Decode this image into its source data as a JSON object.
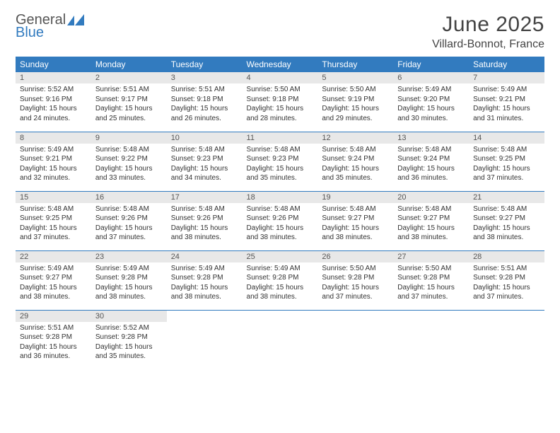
{
  "brand": {
    "word1": "General",
    "word2": "Blue"
  },
  "title": {
    "month": "June 2025",
    "location": "Villard-Bonnot, France"
  },
  "colors": {
    "accent": "#327bbf",
    "header_bg": "#327bbf",
    "daynum_bg": "#e8e8e8",
    "text": "#333333"
  },
  "columns": [
    "Sunday",
    "Monday",
    "Tuesday",
    "Wednesday",
    "Thursday",
    "Friday",
    "Saturday"
  ],
  "weeks": [
    [
      {
        "n": "1",
        "sr": "5:52 AM",
        "ss": "9:16 PM",
        "dl": "15 hours and 24 minutes."
      },
      {
        "n": "2",
        "sr": "5:51 AM",
        "ss": "9:17 PM",
        "dl": "15 hours and 25 minutes."
      },
      {
        "n": "3",
        "sr": "5:51 AM",
        "ss": "9:18 PM",
        "dl": "15 hours and 26 minutes."
      },
      {
        "n": "4",
        "sr": "5:50 AM",
        "ss": "9:18 PM",
        "dl": "15 hours and 28 minutes."
      },
      {
        "n": "5",
        "sr": "5:50 AM",
        "ss": "9:19 PM",
        "dl": "15 hours and 29 minutes."
      },
      {
        "n": "6",
        "sr": "5:49 AM",
        "ss": "9:20 PM",
        "dl": "15 hours and 30 minutes."
      },
      {
        "n": "7",
        "sr": "5:49 AM",
        "ss": "9:21 PM",
        "dl": "15 hours and 31 minutes."
      }
    ],
    [
      {
        "n": "8",
        "sr": "5:49 AM",
        "ss": "9:21 PM",
        "dl": "15 hours and 32 minutes."
      },
      {
        "n": "9",
        "sr": "5:48 AM",
        "ss": "9:22 PM",
        "dl": "15 hours and 33 minutes."
      },
      {
        "n": "10",
        "sr": "5:48 AM",
        "ss": "9:23 PM",
        "dl": "15 hours and 34 minutes."
      },
      {
        "n": "11",
        "sr": "5:48 AM",
        "ss": "9:23 PM",
        "dl": "15 hours and 35 minutes."
      },
      {
        "n": "12",
        "sr": "5:48 AM",
        "ss": "9:24 PM",
        "dl": "15 hours and 35 minutes."
      },
      {
        "n": "13",
        "sr": "5:48 AM",
        "ss": "9:24 PM",
        "dl": "15 hours and 36 minutes."
      },
      {
        "n": "14",
        "sr": "5:48 AM",
        "ss": "9:25 PM",
        "dl": "15 hours and 37 minutes."
      }
    ],
    [
      {
        "n": "15",
        "sr": "5:48 AM",
        "ss": "9:25 PM",
        "dl": "15 hours and 37 minutes."
      },
      {
        "n": "16",
        "sr": "5:48 AM",
        "ss": "9:26 PM",
        "dl": "15 hours and 37 minutes."
      },
      {
        "n": "17",
        "sr": "5:48 AM",
        "ss": "9:26 PM",
        "dl": "15 hours and 38 minutes."
      },
      {
        "n": "18",
        "sr": "5:48 AM",
        "ss": "9:26 PM",
        "dl": "15 hours and 38 minutes."
      },
      {
        "n": "19",
        "sr": "5:48 AM",
        "ss": "9:27 PM",
        "dl": "15 hours and 38 minutes."
      },
      {
        "n": "20",
        "sr": "5:48 AM",
        "ss": "9:27 PM",
        "dl": "15 hours and 38 minutes."
      },
      {
        "n": "21",
        "sr": "5:48 AM",
        "ss": "9:27 PM",
        "dl": "15 hours and 38 minutes."
      }
    ],
    [
      {
        "n": "22",
        "sr": "5:49 AM",
        "ss": "9:27 PM",
        "dl": "15 hours and 38 minutes."
      },
      {
        "n": "23",
        "sr": "5:49 AM",
        "ss": "9:28 PM",
        "dl": "15 hours and 38 minutes."
      },
      {
        "n": "24",
        "sr": "5:49 AM",
        "ss": "9:28 PM",
        "dl": "15 hours and 38 minutes."
      },
      {
        "n": "25",
        "sr": "5:49 AM",
        "ss": "9:28 PM",
        "dl": "15 hours and 38 minutes."
      },
      {
        "n": "26",
        "sr": "5:50 AM",
        "ss": "9:28 PM",
        "dl": "15 hours and 37 minutes."
      },
      {
        "n": "27",
        "sr": "5:50 AM",
        "ss": "9:28 PM",
        "dl": "15 hours and 37 minutes."
      },
      {
        "n": "28",
        "sr": "5:51 AM",
        "ss": "9:28 PM",
        "dl": "15 hours and 37 minutes."
      }
    ],
    [
      {
        "n": "29",
        "sr": "5:51 AM",
        "ss": "9:28 PM",
        "dl": "15 hours and 36 minutes."
      },
      {
        "n": "30",
        "sr": "5:52 AM",
        "ss": "9:28 PM",
        "dl": "15 hours and 35 minutes."
      },
      null,
      null,
      null,
      null,
      null
    ]
  ],
  "labels": {
    "sunrise": "Sunrise: ",
    "sunset": "Sunset: ",
    "daylight": "Daylight: "
  }
}
